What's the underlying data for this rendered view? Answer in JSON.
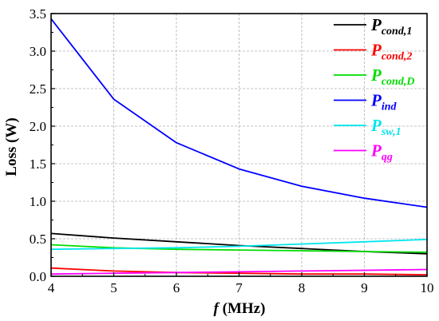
{
  "chart_data": {
    "type": "line",
    "title": "",
    "xlabel": {
      "symbol": "f",
      "unit": " (MHz)"
    },
    "ylabel": "Loss (W)",
    "xlim": [
      4,
      10
    ],
    "ylim": [
      0,
      3.5
    ],
    "x_ticks": [
      "4",
      "5",
      "6",
      "7",
      "8",
      "9",
      "10"
    ],
    "y_ticks": [
      "0.0",
      "0.5",
      "1.0",
      "1.5",
      "2.0",
      "2.5",
      "3.0",
      "3.5"
    ],
    "grid": true,
    "legend_position": "top-right",
    "x": [
      4,
      5,
      6,
      7,
      8,
      9,
      10
    ],
    "series": [
      {
        "name_main": "P",
        "name_sub": "cond,1",
        "color": "#000000",
        "values": [
          0.57,
          0.51,
          0.46,
          0.41,
          0.37,
          0.33,
          0.3
        ]
      },
      {
        "name_main": "P",
        "name_sub": "cond,2",
        "color": "#ff0000",
        "values": [
          0.11,
          0.07,
          0.05,
          0.04,
          0.03,
          0.03,
          0.02
        ]
      },
      {
        "name_main": "P",
        "name_sub": "cond,D",
        "color": "#00dd00",
        "values": [
          0.42,
          0.38,
          0.36,
          0.35,
          0.34,
          0.33,
          0.32
        ]
      },
      {
        "name_main": "P",
        "name_sub": "ind",
        "color": "#0000ff",
        "values": [
          3.43,
          2.36,
          1.78,
          1.43,
          1.2,
          1.04,
          0.92
        ]
      },
      {
        "name_main": "P",
        "name_sub": "sw,1",
        "color": "#00e5ee",
        "values": [
          0.36,
          0.37,
          0.38,
          0.4,
          0.43,
          0.46,
          0.49
        ]
      },
      {
        "name_main": "P",
        "name_sub": "qg",
        "color": "#ff00ff",
        "values": [
          0.03,
          0.04,
          0.05,
          0.06,
          0.07,
          0.08,
          0.09
        ]
      }
    ]
  }
}
